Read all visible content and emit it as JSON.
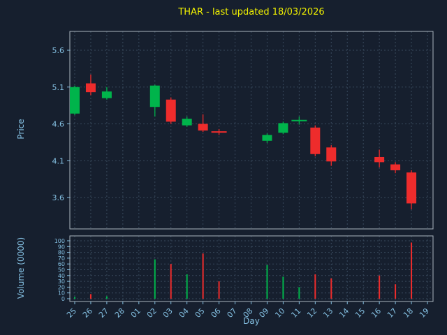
{
  "chart_data": {
    "type": "candlestick",
    "title": "THAR - last updated 18/03/2026",
    "xlabel": "Day",
    "price_ylabel": "Price",
    "volume_ylabel": "Volume (0000)",
    "x_ticklabels": [
      "25",
      "26",
      "27",
      "28",
      "01",
      "02",
      "03",
      "04",
      "05",
      "06",
      "07",
      "08",
      "09",
      "10",
      "11",
      "12",
      "13",
      "14",
      "15",
      "16",
      "17",
      "18",
      "19"
    ],
    "price_ticks": [
      5.6,
      5.1,
      4.6,
      4.1,
      3.6
    ],
    "price_ylim": [
      3.17,
      5.86
    ],
    "volume_ticks": [
      0,
      10,
      20,
      30,
      40,
      50,
      60,
      70,
      80,
      90,
      100
    ],
    "volume_ylim": [
      0,
      108
    ],
    "grid": "dashed",
    "legend": "none",
    "colors": {
      "background": "#161f2e",
      "up": "#00b44b",
      "down": "#ee2c2c",
      "grid": "#38495c",
      "spine": "#aab4be",
      "tick_label": "#85c1e3",
      "title": "#f0f000"
    },
    "candles": [
      {
        "day": "25",
        "open": 4.74,
        "high": 5.12,
        "low": 4.72,
        "close": 5.1,
        "volume": 3
      },
      {
        "day": "26",
        "open": 5.15,
        "high": 5.27,
        "low": 4.99,
        "close": 5.03,
        "volume": 8
      },
      {
        "day": "27",
        "open": 4.95,
        "high": 5.1,
        "low": 4.93,
        "close": 5.04,
        "volume": 4
      },
      {
        "day": "02",
        "open": 4.83,
        "high": 5.13,
        "low": 4.7,
        "close": 5.12,
        "volume": 68
      },
      {
        "day": "03",
        "open": 4.93,
        "high": 4.96,
        "low": 4.6,
        "close": 4.63,
        "volume": 60
      },
      {
        "day": "04",
        "open": 4.58,
        "high": 4.7,
        "low": 4.56,
        "close": 4.67,
        "volume": 42
      },
      {
        "day": "05",
        "open": 4.6,
        "high": 4.73,
        "low": 4.49,
        "close": 4.51,
        "volume": 78
      },
      {
        "day": "06",
        "open": 4.5,
        "high": 4.53,
        "low": 4.45,
        "close": 4.48,
        "volume": 30
      },
      {
        "day": "09",
        "open": 4.37,
        "high": 4.47,
        "low": 4.34,
        "close": 4.45,
        "volume": 58
      },
      {
        "day": "10",
        "open": 4.48,
        "high": 4.63,
        "low": 4.46,
        "close": 4.61,
        "volume": 38
      },
      {
        "day": "11",
        "open": 4.64,
        "high": 4.7,
        "low": 4.59,
        "close": 4.65,
        "volume": 20
      },
      {
        "day": "12",
        "open": 4.55,
        "high": 4.58,
        "low": 4.16,
        "close": 4.19,
        "volume": 42
      },
      {
        "day": "13",
        "open": 4.28,
        "high": 4.31,
        "low": 4.03,
        "close": 4.09,
        "volume": 35
      },
      {
        "day": "16",
        "open": 4.15,
        "high": 4.25,
        "low": 4.01,
        "close": 4.08,
        "volume": 40
      },
      {
        "day": "17",
        "open": 4.05,
        "high": 4.08,
        "low": 3.93,
        "close": 3.97,
        "volume": 25
      },
      {
        "day": "18",
        "open": 3.94,
        "high": 3.97,
        "low": 3.44,
        "close": 3.52,
        "volume": 97
      }
    ]
  }
}
